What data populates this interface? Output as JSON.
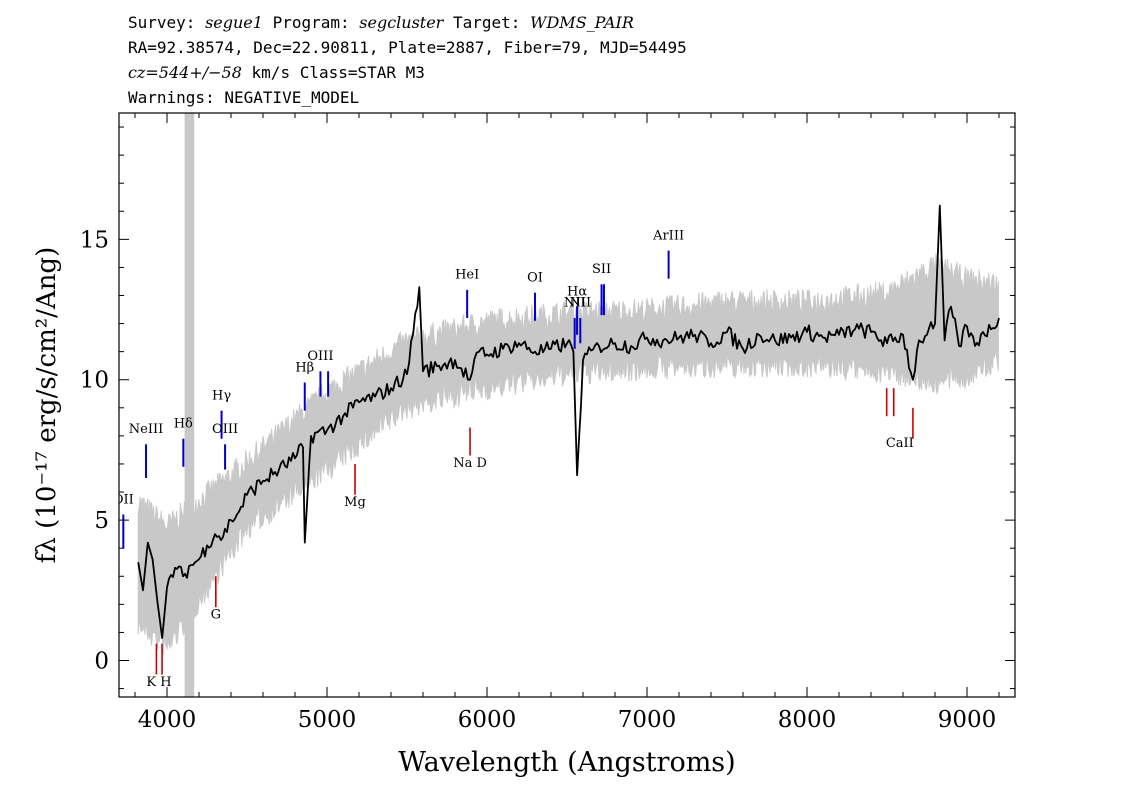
{
  "header": {
    "survey_label": "Survey: ",
    "survey": "segue1",
    "program_label": " Program: ",
    "program": "segcluster",
    "target_label": " Target: ",
    "target": "WDMS_PAIR",
    "line2": "RA=92.38574, Dec=22.90811, Plate=2887, Fiber=79, MJD=54495",
    "cz": "cz=544+/−58",
    "cz_rest": " km/s Class=STAR M3",
    "warnings": "Warnings: NEGATIVE_MODEL"
  },
  "colors": {
    "flux": "#000000",
    "error": "#c8c8c8",
    "emission": "#0000cc",
    "absorption": "#cc0000",
    "masked_band": "#c8c8c8"
  },
  "chart_data": {
    "type": "line",
    "xlabel": "Wavelength (Angstroms)",
    "ylabel": "fλ (10⁻¹⁷ erg/s/cm²/Ang)",
    "xlim": [
      3700,
      9300
    ],
    "ylim": [
      -1.3,
      19.5
    ],
    "x_ticks": [
      4000,
      5000,
      6000,
      7000,
      8000,
      9000
    ],
    "y_ticks": [
      0,
      5,
      10,
      15
    ],
    "grid": false,
    "masked_region": [
      4110,
      4170
    ],
    "series": [
      {
        "kind": "flux",
        "x": [
          3820,
          3850,
          3880,
          3910,
          3940,
          3970,
          4000,
          4050,
          4100,
          4150,
          4200,
          4250,
          4300,
          4350,
          4400,
          4450,
          4500,
          4600,
          4700,
          4800,
          4850,
          4861,
          4900,
          5000,
          5100,
          5200,
          5300,
          5400,
          5500,
          5577,
          5600,
          5700,
          5800,
          5893,
          5950,
          6000,
          6100,
          6200,
          6300,
          6400,
          6500,
          6540,
          6563,
          6600,
          6700,
          6800,
          6900,
          7000,
          7100,
          7200,
          7300,
          7400,
          7500,
          7600,
          7700,
          7800,
          7900,
          8000,
          8100,
          8200,
          8300,
          8400,
          8500,
          8600,
          8662,
          8700,
          8750,
          8800,
          8830,
          8860,
          8900,
          8950,
          9000,
          9050,
          9100,
          9150,
          9200
        ],
        "values": [
          3.5,
          2.5,
          4.2,
          3.6,
          2.1,
          0.8,
          2.6,
          3.3,
          3.0,
          3.4,
          3.6,
          4.1,
          4.5,
          4.4,
          5.0,
          5.3,
          5.9,
          6.4,
          6.8,
          7.2,
          7.6,
          4.2,
          8.0,
          8.2,
          8.7,
          9.2,
          9.4,
          9.7,
          10.2,
          13.3,
          10.3,
          10.5,
          10.7,
          10.0,
          11.0,
          10.9,
          11.1,
          11.3,
          11.0,
          11.1,
          11.3,
          11.0,
          6.6,
          10.7,
          11.2,
          11.3,
          11.2,
          11.5,
          11.4,
          11.5,
          11.6,
          11.3,
          11.7,
          11.1,
          11.6,
          11.4,
          11.5,
          11.7,
          11.5,
          11.6,
          11.8,
          11.7,
          11.3,
          11.6,
          10.0,
          11.4,
          11.6,
          12.0,
          16.2,
          11.4,
          12.6,
          11.2,
          11.9,
          11.2,
          11.7,
          11.8,
          12.2
        ]
      },
      {
        "kind": "error_envelope",
        "x": [
          3820,
          4000,
          4500,
          5000,
          5500,
          6000,
          6500,
          7000,
          7500,
          8000,
          8500,
          8800,
          9000,
          9200
        ],
        "upper": [
          5.5,
          4.6,
          6.9,
          9.4,
          11.2,
          11.9,
          12.2,
          12.3,
          12.6,
          12.6,
          12.9,
          13.9,
          13.4,
          13.2
        ],
        "lower": [
          1.5,
          0.6,
          4.9,
          7.0,
          9.2,
          9.9,
          10.4,
          10.6,
          10.7,
          10.7,
          10.5,
          10.1,
          10.3,
          10.9
        ]
      }
    ],
    "emission_lines": [
      {
        "label": "OII",
        "x": 3727,
        "y0": 4.0,
        "y1": 5.2,
        "ly": 5.6
      },
      {
        "label": "NeIII",
        "x": 3869,
        "y0": 6.5,
        "y1": 7.7,
        "ly": 8.1
      },
      {
        "label": "Hδ",
        "x": 4102,
        "y0": 6.9,
        "y1": 7.9,
        "ly": 8.3
      },
      {
        "label": "Hγ",
        "x": 4341,
        "y0": 7.9,
        "y1": 8.9,
        "ly": 9.3
      },
      {
        "label": "OIII",
        "x": 4363,
        "y0": 6.8,
        "y1": 7.7,
        "ly": 8.1
      },
      {
        "label": "Hβ",
        "x": 4861,
        "y0": 8.9,
        "y1": 9.9,
        "ly": 10.3
      },
      {
        "label": "OIII",
        "x": 4959,
        "y0": 9.4,
        "y1": 10.3,
        "ly": 10.7
      },
      {
        "label": "",
        "x": 5007,
        "y0": 9.4,
        "y1": 10.3,
        "ly": 0
      },
      {
        "label": "HeI",
        "x": 5876,
        "y0": 12.2,
        "y1": 13.2,
        "ly": 13.6
      },
      {
        "label": "OI",
        "x": 6300,
        "y0": 12.1,
        "y1": 13.1,
        "ly": 13.5
      },
      {
        "label": "NII",
        "x": 6548,
        "y0": 11.1,
        "y1": 12.2,
        "ly": 12.6
      },
      {
        "label": "Hα",
        "x": 6563,
        "y0": 11.6,
        "y1": 12.6,
        "ly": 13.0
      },
      {
        "label": "NII",
        "x": 6583,
        "y0": 11.3,
        "y1": 12.2,
        "ly": 12.6
      },
      {
        "label": "SII",
        "x": 6716,
        "y0": 12.3,
        "y1": 13.4,
        "ly": 13.8
      },
      {
        "label": "",
        "x": 6731,
        "y0": 12.3,
        "y1": 13.4,
        "ly": 0
      },
      {
        "label": "ArIII",
        "x": 7135,
        "y0": 13.6,
        "y1": 14.6,
        "ly": 15.0
      }
    ],
    "absorption_lines": [
      {
        "label": "K",
        "x": 3934,
        "y0": -0.5,
        "y1": 0.6
      },
      {
        "label": "H",
        "x": 3969,
        "y0": -0.5,
        "y1": 0.6
      },
      {
        "label": "G",
        "x": 4305,
        "y0": 1.9,
        "y1": 3.0
      },
      {
        "label": "Mg",
        "x": 5175,
        "y0": 5.9,
        "y1": 7.0
      },
      {
        "label": "Na",
        "x": 5894,
        "y0": 7.3,
        "y1": 8.3
      },
      {
        "label": "CaII",
        "x": 8498,
        "y0": 8.7,
        "y1": 9.7
      },
      {
        "label": "",
        "x": 8542,
        "y0": 8.7,
        "y1": 9.7
      },
      {
        "label": "",
        "x": 8662,
        "y0": 7.9,
        "y1": 9.0
      }
    ],
    "absorption_label_groups": [
      {
        "text": "K H",
        "x": 3950,
        "y": -0.9
      },
      {
        "text": "G",
        "x": 4305,
        "y": 1.5
      },
      {
        "text": "Mg",
        "x": 5175,
        "y": 5.5
      },
      {
        "text": "Na  D",
        "x": 5894,
        "y": 6.9
      },
      {
        "text": "CaII",
        "x": 8580,
        "y": 7.6
      }
    ]
  }
}
